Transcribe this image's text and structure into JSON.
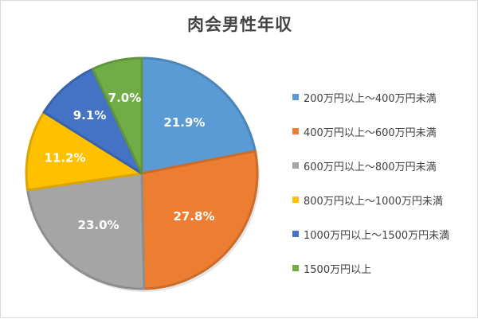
{
  "chart_data": {
    "type": "pie",
    "title": "肉会男性年収",
    "categories": [
      "200万円以上～400万円未満",
      "400万円以上～600万円未満",
      "600万円以上～800万円未満",
      "800万円以上～1000万円未満",
      "1000万円以上～1500万円未満",
      "1500万円以上"
    ],
    "values": [
      21.9,
      27.8,
      23.0,
      11.2,
      9.1,
      7.0
    ],
    "data_labels": [
      "21.9%",
      "27.8%",
      "23.0%",
      "11.2%",
      "9.1%",
      "7.0%"
    ],
    "colors": [
      "#5b9bd5",
      "#ed7d31",
      "#a5a5a5",
      "#ffc000",
      "#4472c4",
      "#70ad47"
    ],
    "legend_position": "right",
    "start_angle": "12 o'clock",
    "direction": "clockwise"
  }
}
